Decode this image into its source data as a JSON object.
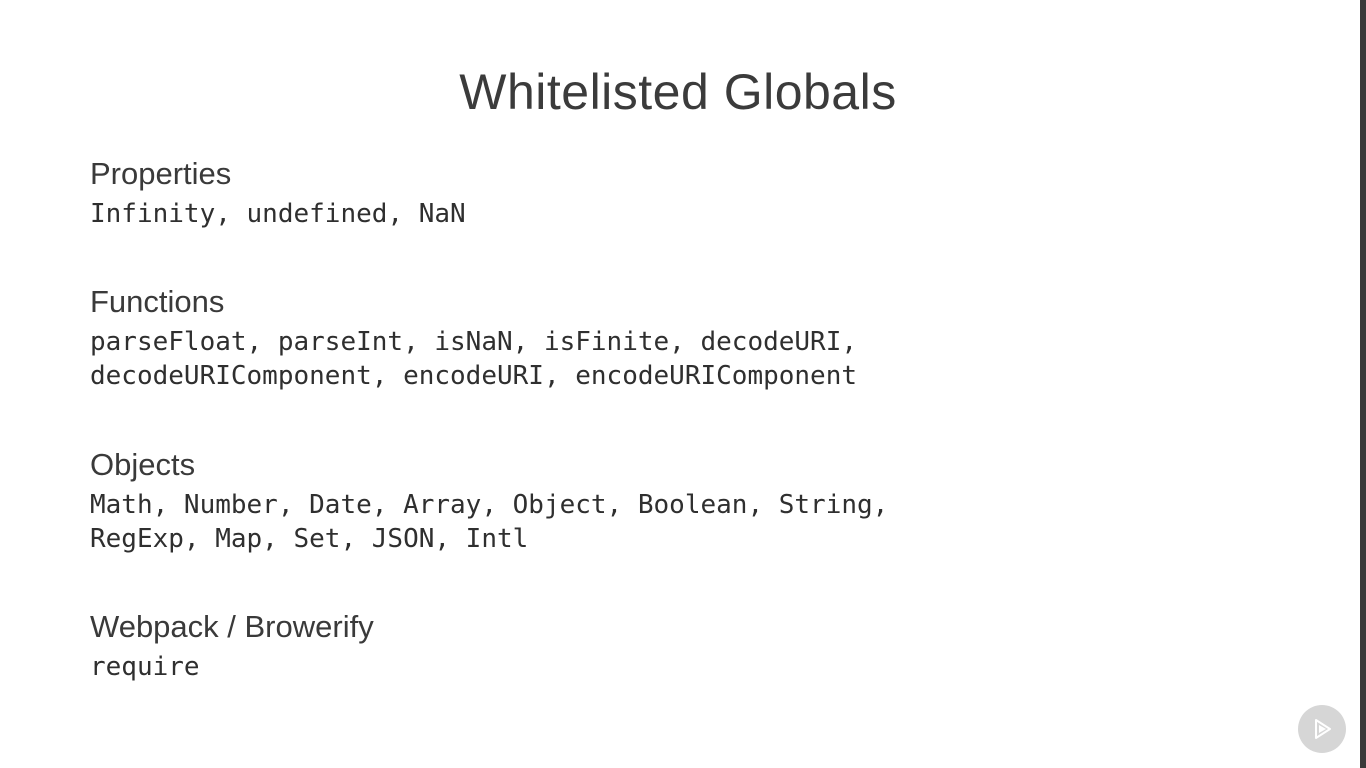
{
  "slide": {
    "title": "Whitelisted Globals",
    "sections": [
      {
        "heading": "Properties",
        "lines": [
          "Infinity, undefined, NaN"
        ]
      },
      {
        "heading": "Functions",
        "lines": [
          "parseFloat, parseInt, isNaN, isFinite, decodeURI,",
          "decodeURIComponent, encodeURI, encodeURIComponent"
        ]
      },
      {
        "heading": "Objects",
        "lines": [
          "Math, Number, Date, Array, Object, Boolean, String,",
          "RegExp, Map, Set, JSON, Intl"
        ]
      },
      {
        "heading": "Webpack / Browerify",
        "lines": [
          "require"
        ]
      }
    ]
  },
  "icons": {
    "player_logo": "play-logo-icon"
  },
  "colors": {
    "background": "#ffffff",
    "text": "#3a3a3a",
    "logo_background": "#d6d6d6"
  }
}
